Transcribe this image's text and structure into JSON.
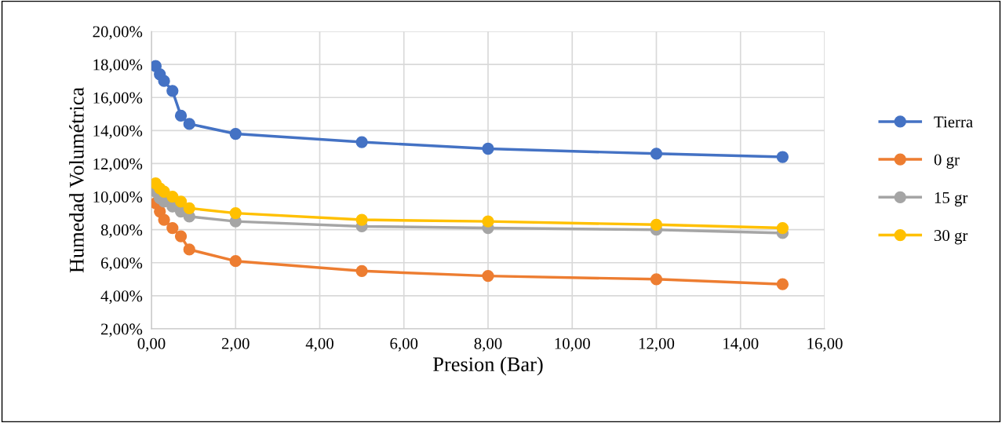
{
  "chart_data": {
    "type": "line",
    "xlabel": "Presion (Bar)",
    "ylabel": "Humedad Volumétrica",
    "x": [
      0.1,
      0.2,
      0.3,
      0.5,
      0.7,
      0.9,
      2,
      5,
      8,
      12,
      15
    ],
    "series": [
      {
        "name": "Tierra",
        "color": "#4472c4",
        "values": [
          17.9,
          17.4,
          17.0,
          16.4,
          14.9,
          14.4,
          13.8,
          13.3,
          12.9,
          12.6,
          12.4
        ]
      },
      {
        "name": "0 gr",
        "color": "#ed7d31",
        "values": [
          9.6,
          9.1,
          8.6,
          8.1,
          7.6,
          6.8,
          6.1,
          5.5,
          5.2,
          5.0,
          4.7
        ]
      },
      {
        "name": "15 gr",
        "color": "#a5a5a5",
        "values": [
          10.3,
          9.9,
          9.7,
          9.4,
          9.1,
          8.8,
          8.5,
          8.2,
          8.1,
          8.0,
          7.8
        ]
      },
      {
        "name": "30 gr",
        "color": "#ffc000",
        "values": [
          10.8,
          10.5,
          10.3,
          10.0,
          9.7,
          9.3,
          9.0,
          8.6,
          8.5,
          8.3,
          8.1
        ]
      }
    ],
    "xlim": [
      0,
      16
    ],
    "xticks": [
      {
        "value": 0,
        "label": "0,00"
      },
      {
        "value": 2,
        "label": "2,00"
      },
      {
        "value": 4,
        "label": "4,00"
      },
      {
        "value": 6,
        "label": "6,00"
      },
      {
        "value": 8,
        "label": "8,00"
      },
      {
        "value": 10,
        "label": "10,00"
      },
      {
        "value": 12,
        "label": "12,00"
      },
      {
        "value": 14,
        "label": "14,00"
      },
      {
        "value": 16,
        "label": "16,00"
      }
    ],
    "ylim": [
      2,
      20
    ],
    "yticks": [
      {
        "value": 2,
        "label": "2,00%"
      },
      {
        "value": 4,
        "label": "4,00%"
      },
      {
        "value": 6,
        "label": "6,00%"
      },
      {
        "value": 8,
        "label": "8,00%"
      },
      {
        "value": 10,
        "label": "10,00%"
      },
      {
        "value": 12,
        "label": "12,00%"
      },
      {
        "value": 14,
        "label": "14,00%"
      },
      {
        "value": 16,
        "label": "16,00%"
      },
      {
        "value": 18,
        "label": "18,00%"
      },
      {
        "value": 20,
        "label": "20,00%"
      }
    ],
    "grid": true,
    "legend": "right",
    "marker": "circle",
    "line_style": "solid"
  }
}
